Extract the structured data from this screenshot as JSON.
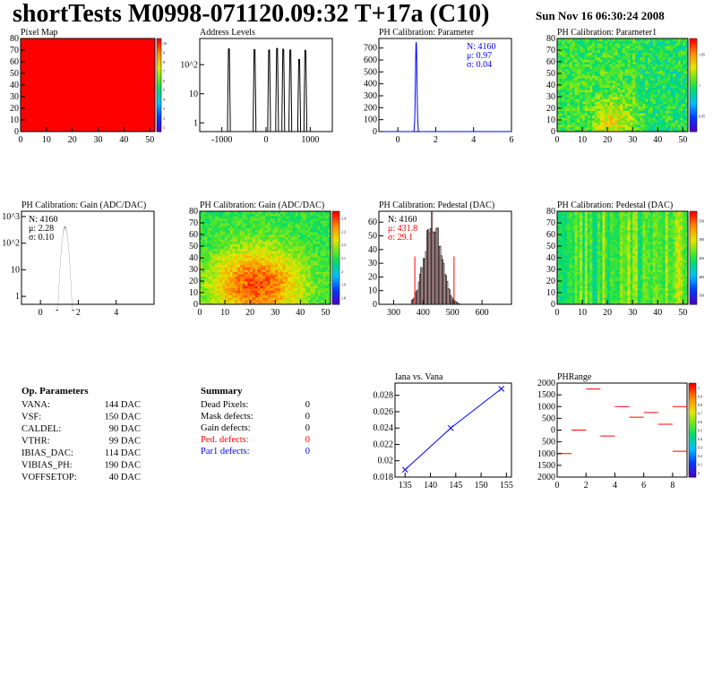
{
  "header": {
    "title": "shortTests M0998-071120.09:32 T+17a (C10)",
    "date": "Sun Nov 16 06:30:24 2008"
  },
  "chart_data": [
    {
      "id": "pixel_map",
      "type": "heatmap",
      "title": "Pixel Map",
      "x_ticks": [
        "0",
        "10",
        "20",
        "30",
        "40",
        "50"
      ],
      "y_ticks": [
        "0",
        "10",
        "20",
        "30",
        "40",
        "50",
        "60",
        "70",
        "80"
      ],
      "xlim": [
        0,
        52
      ],
      "ylim": [
        0,
        80
      ],
      "fill_color": "#ff0000",
      "colorbar_ticks": [
        "1",
        "2",
        "3",
        "4",
        "5",
        "6",
        "7",
        "8",
        "9",
        "10"
      ]
    },
    {
      "id": "address_levels",
      "type": "bar",
      "title": "Address Levels",
      "x_ticks": [
        "-1000",
        "0",
        "1000"
      ],
      "xlim": [
        -1500,
        1500
      ],
      "y_log": true,
      "y_ticks": [
        "1",
        "10",
        "10^2"
      ],
      "peaks": [
        -830,
        -250,
        80,
        260,
        400,
        560,
        760,
        900
      ],
      "peak_heights": [
        350,
        330,
        320,
        360,
        340,
        320,
        150,
        310
      ]
    },
    {
      "id": "ph_cal_param",
      "type": "bar",
      "title": "PH Calibration: Parameter",
      "xlim": [
        -1,
        6
      ],
      "x_ticks": [
        "0",
        "2",
        "4",
        "6"
      ],
      "ylim": [
        0,
        780
      ],
      "y_ticks": [
        "0",
        "100",
        "200",
        "300",
        "400",
        "500",
        "600",
        "700"
      ],
      "stats": [
        {
          "label": "N: 4160"
        },
        {
          "label": "μ: 0.97"
        },
        {
          "label": "σ: 0.04"
        }
      ],
      "mean": 0.97,
      "sigma": 0.04,
      "peak": 750,
      "line_color": "#0000ff"
    },
    {
      "id": "ph_cal_param1",
      "type": "heatmap",
      "title": "PH Calibration: Parameter1",
      "x_ticks": [
        "0",
        "10",
        "20",
        "30",
        "40",
        "50"
      ],
      "y_ticks": [
        "0",
        "10",
        "20",
        "30",
        "40",
        "50",
        "60",
        "70",
        "80"
      ],
      "colorbar_ticks": [
        "0.95",
        "1",
        "1.05"
      ]
    },
    {
      "id": "ph_cal_gain_hist",
      "type": "bar",
      "title": "PH Calibration: Gain (ADC/DAC)",
      "xlim": [
        -1,
        6
      ],
      "x_ticks": [
        "0",
        "2",
        "4"
      ],
      "y_log": true,
      "y_ticks": [
        "1",
        "10",
        "10^2",
        "10^3"
      ],
      "stats": [
        {
          "label": "N: 4160"
        },
        {
          "label": "μ: 2.28"
        },
        {
          "label": "σ: 0.10"
        }
      ],
      "mean": 2.28,
      "sigma": 0.1
    },
    {
      "id": "ph_cal_gain_map",
      "type": "heatmap",
      "title": "PH Calibration: Gain (ADC/DAC)",
      "x_ticks": [
        "0",
        "10",
        "20",
        "30",
        "40",
        "50"
      ],
      "y_ticks": [
        "0",
        "10",
        "20",
        "30",
        "40",
        "50",
        "60",
        "70",
        "80"
      ],
      "colorbar_ticks": [
        "1.8",
        "1.9",
        "2",
        "2.1",
        "2.2",
        "2.3",
        "2.4"
      ]
    },
    {
      "id": "ph_cal_pedestal_hist",
      "type": "bar",
      "title": "PH Calibration: Pedestal (DAC)",
      "xlim": [
        250,
        700
      ],
      "x_ticks": [
        "300",
        "400",
        "500",
        "600"
      ],
      "ylim": [
        0,
        68
      ],
      "y_ticks": [
        "0",
        "10",
        "20",
        "30",
        "40",
        "50",
        "60"
      ],
      "stats": [
        {
          "label": "N: 4160",
          "color": "#000000"
        },
        {
          "label": "μ: 431.8",
          "color": "#ff0000"
        },
        {
          "label": "σ: 29.1",
          "color": "#ff0000"
        }
      ],
      "mean": 431.8,
      "sigma": 29.1,
      "peak": 60,
      "cut_lines": [
        372,
        505
      ]
    },
    {
      "id": "ph_cal_pedestal_map",
      "type": "heatmap",
      "title": "PH Calibration: Pedestal (DAC)",
      "x_ticks": [
        "0",
        "10",
        "20",
        "30",
        "40",
        "50"
      ],
      "y_ticks": [
        "0",
        "10",
        "20",
        "30",
        "40",
        "50",
        "60",
        "70",
        "80"
      ],
      "colorbar_ticks": [
        "350",
        "400",
        "450",
        "500",
        "550"
      ]
    },
    {
      "id": "iana_vs_vana",
      "type": "line",
      "title": "Iana vs. Vana",
      "xlim": [
        133,
        156
      ],
      "ylim": [
        0.018,
        0.0295
      ],
      "x_ticks": [
        "135",
        "140",
        "145",
        "150",
        "155"
      ],
      "y_ticks": [
        "0.018",
        "0.02",
        "0.022",
        "0.024",
        "0.026",
        "0.028"
      ],
      "x": [
        135,
        144,
        154
      ],
      "y": [
        0.0189,
        0.024,
        0.0288
      ],
      "line_color": "#0000ff"
    },
    {
      "id": "ph_range",
      "type": "scatter",
      "title": "PHRange",
      "xlim": [
        0,
        9
      ],
      "ylim": [
        -2000,
        2000
      ],
      "x_ticks": [
        "0",
        "2",
        "4",
        "6",
        "8"
      ],
      "y_ticks": [
        "2000",
        "1500",
        "1000",
        "500",
        "0",
        "500",
        "1000",
        "1500",
        "2000"
      ],
      "segments": [
        {
          "x0": 0,
          "x1": 1,
          "y": -1000
        },
        {
          "x0": 1,
          "x1": 2,
          "y": 0
        },
        {
          "x0": 2,
          "x1": 3,
          "y": 1750
        },
        {
          "x0": 3,
          "x1": 4,
          "y": -250
        },
        {
          "x0": 4,
          "x1": 5,
          "y": 1000
        },
        {
          "x0": 5,
          "x1": 6,
          "y": 550
        },
        {
          "x0": 6,
          "x1": 7,
          "y": 750
        },
        {
          "x0": 7,
          "x1": 8,
          "y": 250
        },
        {
          "x0": 8,
          "x1": 9,
          "y": 1000
        },
        {
          "x0": 8,
          "x1": 9,
          "y": -900
        }
      ],
      "colorbar_ticks": [
        "0",
        "0.1",
        "0.2",
        "0.3",
        "0.4",
        "0.5",
        "0.6",
        "0.7",
        "0.8",
        "0.9",
        "1"
      ],
      "line_color": "#ff0000"
    }
  ],
  "op_parameters": {
    "heading": "Op. Parameters",
    "rows": [
      {
        "name": "VANA:",
        "value": "144 DAC"
      },
      {
        "name": "VSF:",
        "value": "150 DAC"
      },
      {
        "name": "CALDEL:",
        "value": "90 DAC"
      },
      {
        "name": "VTHR:",
        "value": "99 DAC"
      },
      {
        "name": "IBIAS_DAC:",
        "value": "114 DAC"
      },
      {
        "name": "VIBIAS_PH:",
        "value": "190 DAC"
      },
      {
        "name": "VOFFSETOP:",
        "value": "40 DAC"
      }
    ]
  },
  "summary": {
    "heading": "Summary",
    "rows": [
      {
        "name": "Dead Pixels:",
        "value": "0",
        "color": "#000000"
      },
      {
        "name": "Mask defects:",
        "value": "0",
        "color": "#000000"
      },
      {
        "name": "Gain defects:",
        "value": "0",
        "color": "#000000"
      },
      {
        "name": "Ped. defects:",
        "value": "0",
        "color": "#ff0000"
      },
      {
        "name": "Par1 defects:",
        "value": "0",
        "color": "#0000ff"
      }
    ]
  }
}
